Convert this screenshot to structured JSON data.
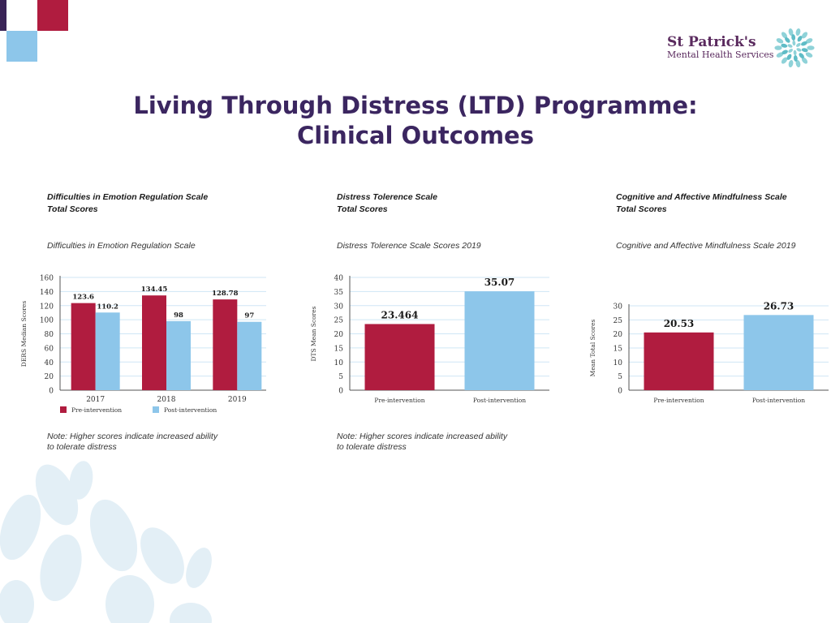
{
  "header": {
    "title_line1": "Living Through Distress (LTD) Programme:",
    "title_line2": "Clinical Outcomes"
  },
  "logo": {
    "name": "St Patrick's",
    "subtitle": "Mental Health Services"
  },
  "colors": {
    "pre": "#b01c3f",
    "post": "#8dc6ea",
    "title": "#3b2660",
    "grid": "#cfe6f5"
  },
  "panels": [
    {
      "heading_line1": "Difficulties in Emotion Regulation Scale",
      "heading_line2": "Total Scores",
      "subtitle": "Difficulties in Emotion Regulation Scale",
      "note_line1": "",
      "note_line2": ""
    },
    {
      "heading_line1": "Distress Tolerence Scale",
      "heading_line2": "Total Scores",
      "subtitle": "Distress Tolerence Scale Scores 2019",
      "note_line1": "Note: Higher scores indicate increased ability",
      "note_line2": "to tolerate distress"
    },
    {
      "heading_line1": "Cognitive and Affective Mindfulness Scale",
      "heading_line2": "Total Scores",
      "subtitle": "Cognitive and Affective Mindfulness Scale 2019",
      "note_line1": "",
      "note_line2": ""
    }
  ],
  "left_note": {
    "line1": "Note: Higher scores indicate increased ability",
    "line2": "to tolerate distress"
  },
  "chart_data": [
    {
      "type": "bar",
      "title": "Difficulties in Emotion Regulation Scale",
      "categories": [
        "2017",
        "2018",
        "2019"
      ],
      "series": [
        {
          "name": "Pre-intervention",
          "values": [
            123.6,
            134.45,
            128.78
          ],
          "labels": [
            "123.6",
            "134.45",
            "128.78"
          ]
        },
        {
          "name": "Post-intervention",
          "values": [
            110.2,
            98,
            97
          ],
          "labels": [
            "110.2",
            "98",
            "97"
          ]
        }
      ],
      "ylabel": "DERS Median Scores",
      "ylim": [
        0,
        160
      ],
      "yticks": [
        0,
        20,
        40,
        60,
        80,
        100,
        120,
        140,
        160
      ],
      "legend": "bottom",
      "grid": true
    },
    {
      "type": "bar",
      "title": "Distress Tolerence Scale Scores 2019",
      "categories": [
        "Pre-intervention",
        "Post-intervention"
      ],
      "values": [
        23.464,
        35.07
      ],
      "labels": [
        "23.464",
        "35.07"
      ],
      "ylabel": "DTS Mean Scores",
      "ylim": [
        0,
        40
      ],
      "yticks": [
        0,
        5,
        10,
        15,
        20,
        25,
        30,
        35,
        40
      ],
      "grid": true
    },
    {
      "type": "bar",
      "title": "Cognitive and Affective Mindfulness Scale 2019",
      "categories": [
        "Pre-intervention",
        "Post-intervention"
      ],
      "values": [
        20.53,
        26.73
      ],
      "labels": [
        "20.53",
        "26.73"
      ],
      "ylabel": "Mean Total Scores",
      "ylim": [
        0,
        30
      ],
      "yticks": [
        0,
        5,
        10,
        15,
        20,
        25,
        30
      ],
      "grid": true
    }
  ]
}
